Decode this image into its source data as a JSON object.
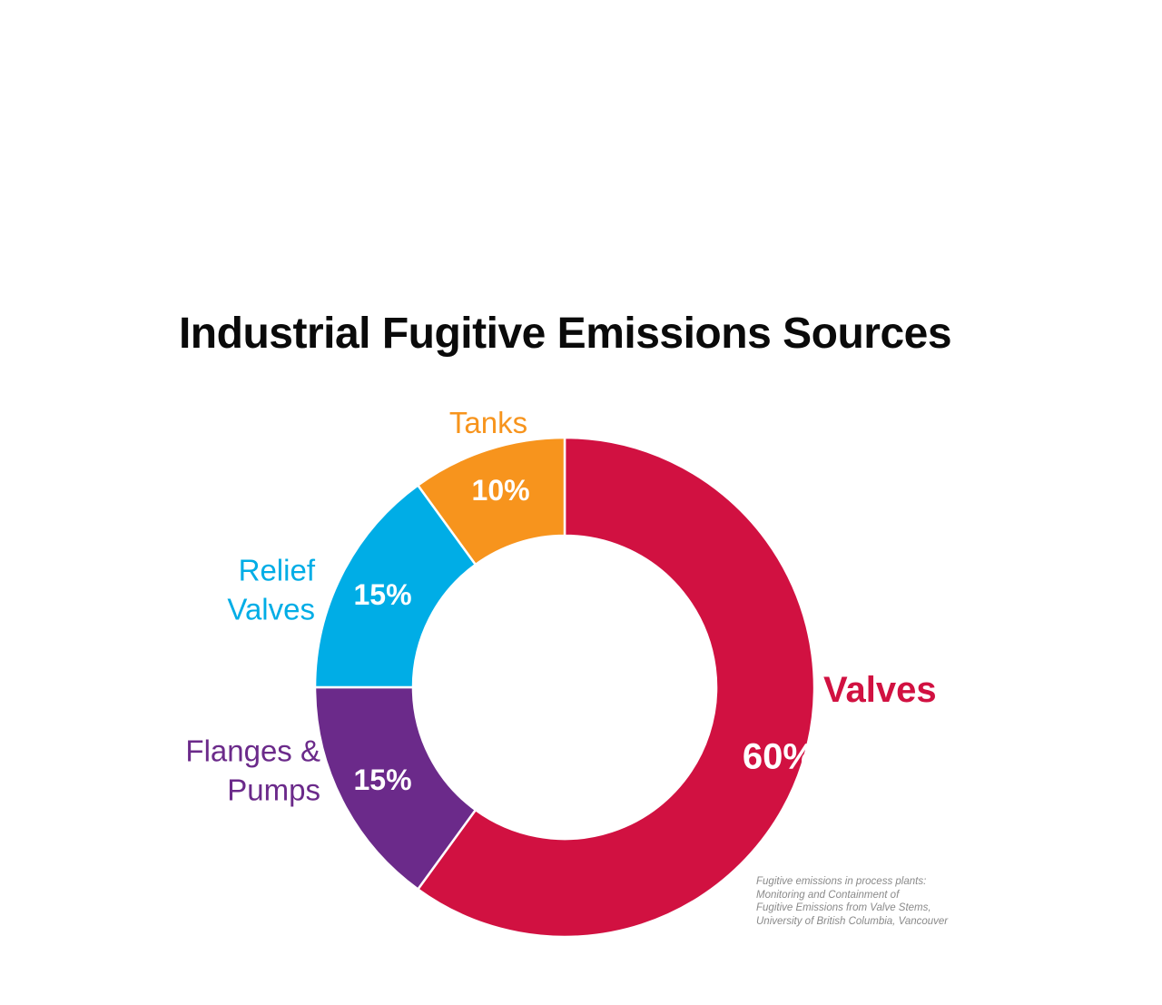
{
  "chart_data": {
    "type": "pie",
    "variant": "donut",
    "title": "Industrial Fugitive Emissions Sources",
    "slices": [
      {
        "label": "Valves",
        "value": 60,
        "value_label": "60%",
        "color": "#d11141",
        "label_color": "#d11141"
      },
      {
        "label": "Flanges & Pumps",
        "value": 15,
        "value_label": "15%",
        "color": "#6b2a8a",
        "label_color": "#6b2a8a"
      },
      {
        "label": "Relief Valves",
        "value": 15,
        "value_label": "15%",
        "color": "#00ade6",
        "label_color": "#00ade6"
      },
      {
        "label": "Tanks",
        "value": 10,
        "value_label": "10%",
        "color": "#f7941d",
        "label_color": "#f7941d"
      }
    ],
    "start": "top, clockwise",
    "legend": "none"
  },
  "source_lines": [
    "Fugitive emissions in process plants:",
    "Monitoring and Containment of",
    "Fugitive Emissions from Valve Stems,",
    "University of British Columbia, Vancouver"
  ],
  "colors": {
    "background": "#ffffff",
    "title": "#0a0a0a",
    "source_text": "#8a8a8a",
    "slice_border": "#ffffff"
  }
}
